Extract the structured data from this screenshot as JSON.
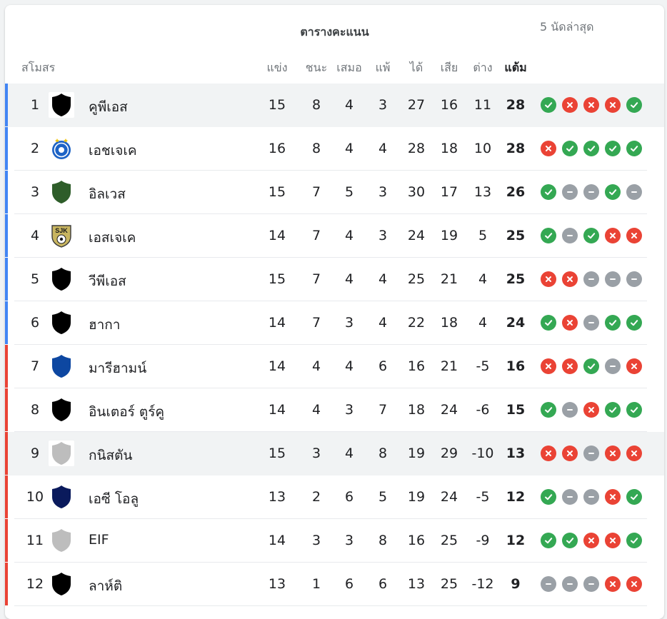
{
  "table_title": "ตารางคะแนน",
  "headers": {
    "club": "สโมสร",
    "played": "แข่ง",
    "won": "ชนะ",
    "drawn": "เสมอ",
    "lost": "แพ้",
    "gf": "ได้",
    "ga": "เสีย",
    "gd": "ต่าง",
    "pts": "แต้ม",
    "form": "5 นัดล่าสุด"
  },
  "colors": {
    "zone_top": "#4285f4",
    "zone_bottom": "#ea4335",
    "win": "#34a853",
    "loss": "#ea4335",
    "draw": "#9aa0a6"
  },
  "rows": [
    {
      "rank": "1",
      "name": "คูพีเอส",
      "p": "15",
      "w": "8",
      "d": "4",
      "l": "3",
      "gf": "27",
      "ga": "16",
      "gd": "11",
      "pts": "28",
      "form": [
        "W",
        "L",
        "L",
        "L",
        "W"
      ],
      "zone": "top",
      "crest": "shield",
      "crest_color": "#000000",
      "highlight": true,
      "crest_boxed": true
    },
    {
      "rank": "2",
      "name": "เอชเจเค",
      "p": "16",
      "w": "8",
      "d": "4",
      "l": "4",
      "gf": "28",
      "ga": "18",
      "gd": "10",
      "pts": "28",
      "form": [
        "L",
        "W",
        "W",
        "W",
        "W"
      ],
      "zone": "top",
      "crest": "hjk",
      "crest_color": "#1d63c6"
    },
    {
      "rank": "3",
      "name": "อิลเวส",
      "p": "15",
      "w": "7",
      "d": "5",
      "l": "3",
      "gf": "30",
      "ga": "17",
      "gd": "13",
      "pts": "26",
      "form": [
        "W",
        "D",
        "D",
        "W",
        "D"
      ],
      "zone": "top",
      "crest": "shield",
      "crest_color": "#2e5d2a"
    },
    {
      "rank": "4",
      "name": "เอสเจเค",
      "p": "14",
      "w": "7",
      "d": "4",
      "l": "3",
      "gf": "24",
      "ga": "19",
      "gd": "5",
      "pts": "25",
      "form": [
        "W",
        "D",
        "W",
        "L",
        "L"
      ],
      "zone": "top",
      "crest": "sjk",
      "crest_color": "#c8b560",
      "crest_text": "SJK"
    },
    {
      "rank": "5",
      "name": "วีพีเอส",
      "p": "15",
      "w": "7",
      "d": "4",
      "l": "4",
      "gf": "25",
      "ga": "21",
      "gd": "4",
      "pts": "25",
      "form": [
        "L",
        "L",
        "D",
        "D",
        "D"
      ],
      "zone": "top",
      "crest": "shield",
      "crest_color": "#000000"
    },
    {
      "rank": "6",
      "name": "ฮากา",
      "p": "14",
      "w": "7",
      "d": "3",
      "l": "4",
      "gf": "22",
      "ga": "18",
      "gd": "4",
      "pts": "24",
      "form": [
        "W",
        "L",
        "D",
        "W",
        "W"
      ],
      "zone": "top",
      "crest": "shield",
      "crest_color": "#000000"
    },
    {
      "rank": "7",
      "name": "มารีฮามน์",
      "p": "14",
      "w": "4",
      "d": "4",
      "l": "6",
      "gf": "16",
      "ga": "21",
      "gd": "-5",
      "pts": "16",
      "form": [
        "L",
        "L",
        "W",
        "D",
        "L"
      ],
      "zone": "bottom",
      "crest": "shield",
      "crest_color": "#0d47a1"
    },
    {
      "rank": "8",
      "name": "อินเตอร์ ตูร์คู",
      "p": "14",
      "w": "4",
      "d": "3",
      "l": "7",
      "gf": "18",
      "ga": "24",
      "gd": "-6",
      "pts": "15",
      "form": [
        "W",
        "D",
        "L",
        "W",
        "W"
      ],
      "zone": "bottom",
      "crest": "shield",
      "crest_color": "#000000"
    },
    {
      "rank": "9",
      "name": "กนิสตัน",
      "p": "15",
      "w": "3",
      "d": "4",
      "l": "8",
      "gf": "19",
      "ga": "29",
      "gd": "-10",
      "pts": "13",
      "form": [
        "L",
        "L",
        "D",
        "L",
        "L"
      ],
      "zone": "bottom",
      "crest": "shield",
      "crest_color": "#bdbdbd",
      "highlight": true,
      "crest_boxed": true
    },
    {
      "rank": "10",
      "name": "เอซี โอลู",
      "p": "13",
      "w": "2",
      "d": "6",
      "l": "5",
      "gf": "19",
      "ga": "24",
      "gd": "-5",
      "pts": "12",
      "form": [
        "W",
        "D",
        "D",
        "L",
        "W"
      ],
      "zone": "bottom",
      "crest": "shield",
      "crest_color": "#0a1a5c"
    },
    {
      "rank": "11",
      "name": "EIF",
      "p": "14",
      "w": "3",
      "d": "3",
      "l": "8",
      "gf": "16",
      "ga": "25",
      "gd": "-9",
      "pts": "12",
      "form": [
        "W",
        "W",
        "L",
        "L",
        "W"
      ],
      "zone": "bottom",
      "crest": "shield",
      "crest_color": "#bdbdbd"
    },
    {
      "rank": "12",
      "name": "ลาห์ติ",
      "p": "13",
      "w": "1",
      "d": "6",
      "l": "6",
      "gf": "13",
      "ga": "25",
      "gd": "-12",
      "pts": "9",
      "form": [
        "D",
        "D",
        "D",
        "L",
        "L"
      ],
      "zone": "bottom",
      "crest": "shield",
      "crest_color": "#000000"
    }
  ]
}
